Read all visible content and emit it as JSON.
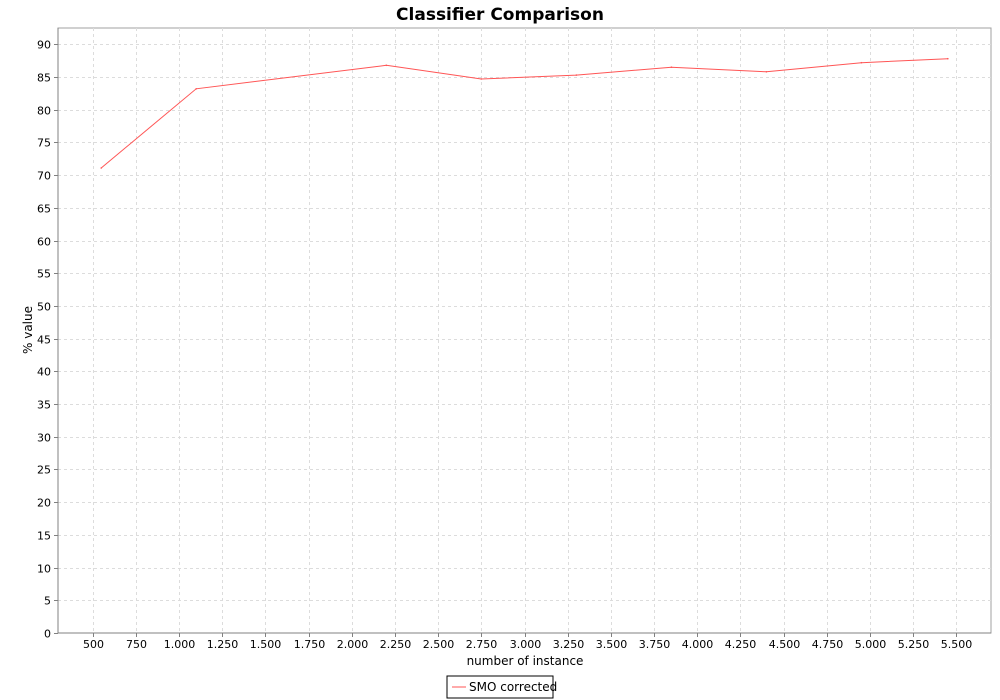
{
  "chart_data": {
    "type": "line",
    "title": "Classifier Comparison",
    "xlabel": "number of instance",
    "ylabel": "% value",
    "xlim": [
      300,
      5700
    ],
    "ylim": [
      0,
      92.5
    ],
    "x_ticks": [
      500,
      750,
      1000,
      1250,
      1500,
      1750,
      2000,
      2250,
      2500,
      2750,
      3000,
      3250,
      3500,
      3750,
      4000,
      4250,
      4500,
      4750,
      5000,
      5250,
      5500
    ],
    "x_tick_labels": [
      "500",
      "750",
      "1.000",
      "1.250",
      "1.500",
      "1.750",
      "2.000",
      "2.250",
      "2.500",
      "2.750",
      "3.000",
      "3.250",
      "3.500",
      "3.750",
      "4.000",
      "4.250",
      "4.500",
      "4.750",
      "5.000",
      "5.250",
      "5.500"
    ],
    "y_ticks": [
      0,
      5,
      10,
      15,
      20,
      25,
      30,
      35,
      40,
      45,
      50,
      55,
      60,
      65,
      70,
      75,
      80,
      85,
      90
    ],
    "grid": true,
    "legend_position": "bottom-center",
    "series": [
      {
        "name": "SMO corrected",
        "color": "#ff5555",
        "x": [
          550,
          1100,
          2200,
          2750,
          3300,
          3850,
          4400,
          4950,
          5450
        ],
        "y": [
          71.1,
          83.2,
          86.8,
          84.7,
          85.3,
          86.5,
          85.8,
          87.2,
          87.8
        ]
      }
    ]
  }
}
